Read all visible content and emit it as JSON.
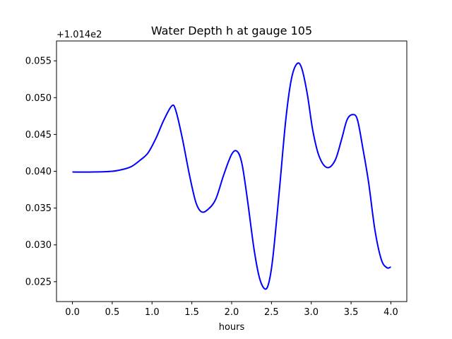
{
  "chart_data": {
    "type": "line",
    "title": "Water Depth h at gauge 105",
    "xlabel": "hours",
    "ylabel": "",
    "offset_label": "+1.014e2",
    "xlim": [
      -0.2,
      4.2
    ],
    "ylim": [
      0.0223,
      0.0577
    ],
    "xticks": [
      0.0,
      0.5,
      1.0,
      1.5,
      2.0,
      2.5,
      3.0,
      3.5,
      4.0
    ],
    "xtick_labels": [
      "0.0",
      "0.5",
      "1.0",
      "1.5",
      "2.0",
      "2.5",
      "3.0",
      "3.5",
      "4.0"
    ],
    "yticks": [
      0.025,
      0.03,
      0.035,
      0.04,
      0.045,
      0.05,
      0.055
    ],
    "ytick_labels": [
      "0.025",
      "0.030",
      "0.035",
      "0.040",
      "0.045",
      "0.050",
      "0.055"
    ],
    "grid": false,
    "series": [
      {
        "color": "#0000ff",
        "x": [
          0.0,
          0.25,
          0.5,
          0.65,
          0.75,
          0.85,
          0.95,
          1.05,
          1.15,
          1.25,
          1.3,
          1.38,
          1.47,
          1.55,
          1.62,
          1.7,
          1.8,
          1.9,
          2.0,
          2.07,
          2.13,
          2.2,
          2.28,
          2.35,
          2.42,
          2.47,
          2.52,
          2.6,
          2.68,
          2.75,
          2.82,
          2.88,
          2.95,
          3.02,
          3.1,
          3.2,
          3.3,
          3.38,
          3.45,
          3.52,
          3.58,
          3.65,
          3.72,
          3.8,
          3.88,
          3.95,
          4.0
        ],
        "y": [
          0.0399,
          0.0399,
          0.04,
          0.0403,
          0.0407,
          0.0415,
          0.0425,
          0.0445,
          0.047,
          0.0489,
          0.0482,
          0.0445,
          0.0395,
          0.0358,
          0.0345,
          0.0348,
          0.0362,
          0.0395,
          0.0423,
          0.0427,
          0.041,
          0.036,
          0.0295,
          0.0255,
          0.024,
          0.025,
          0.0285,
          0.0375,
          0.047,
          0.0525,
          0.0546,
          0.054,
          0.0505,
          0.0455,
          0.042,
          0.0405,
          0.0415,
          0.0443,
          0.047,
          0.0477,
          0.047,
          0.043,
          0.0385,
          0.032,
          0.028,
          0.0269,
          0.027
        ]
      }
    ]
  }
}
